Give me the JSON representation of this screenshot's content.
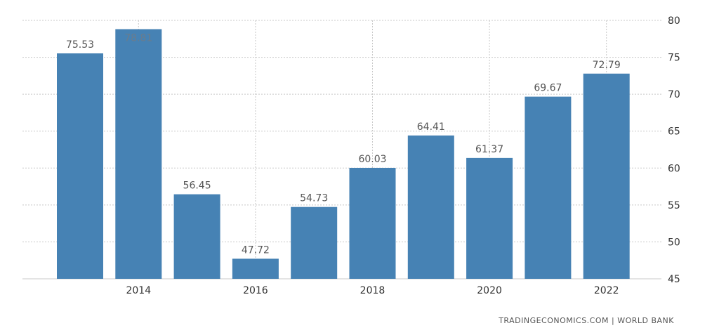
{
  "chart_data": {
    "type": "bar",
    "categories": [
      "2013",
      "2014",
      "2015",
      "2016",
      "2017",
      "2018",
      "2019",
      "2020",
      "2021",
      "2022"
    ],
    "values": [
      75.53,
      78.81,
      56.45,
      47.72,
      54.73,
      60.03,
      64.41,
      61.37,
      69.67,
      72.79
    ],
    "data_labels": [
      "75.53",
      "78.81",
      "56.45",
      "47.72",
      "54.73",
      "60.03",
      "64.41",
      "61.37",
      "69.67",
      "72.79"
    ],
    "x_tick_labels": [
      "2014",
      "2016",
      "2018",
      "2020",
      "2022"
    ],
    "y_ticks": [
      45,
      50,
      55,
      60,
      65,
      70,
      75,
      80
    ],
    "ylim": [
      45,
      80
    ],
    "y_axis_side": "right",
    "grid": true,
    "bar_color": "#4682B4",
    "title": "",
    "xlabel": "",
    "ylabel": ""
  },
  "source": "TRADINGECONOMICS.COM  |  WORLD BANK"
}
